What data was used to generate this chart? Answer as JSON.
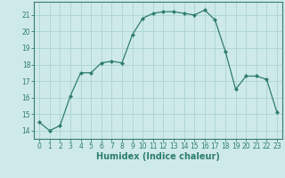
{
  "x": [
    0,
    1,
    2,
    3,
    4,
    5,
    6,
    7,
    8,
    9,
    10,
    11,
    12,
    13,
    14,
    15,
    16,
    17,
    18,
    19,
    20,
    21,
    22,
    23
  ],
  "y": [
    14.5,
    14.0,
    14.3,
    16.1,
    17.5,
    17.5,
    18.1,
    18.2,
    18.1,
    19.8,
    20.8,
    21.1,
    21.2,
    21.2,
    21.1,
    21.0,
    21.3,
    20.7,
    18.8,
    16.5,
    17.3,
    17.3,
    17.1,
    15.1
  ],
  "line_color": "#2e7d6e",
  "marker": "D",
  "marker_size": 2.0,
  "background_color": "#ceeae8",
  "grid_color": "#aad4d0",
  "xlabel": "Humidex (Indice chaleur)",
  "ylabel": "",
  "title": "",
  "xlim": [
    -0.5,
    23.5
  ],
  "ylim": [
    13.5,
    21.8
  ],
  "yticks": [
    14,
    15,
    16,
    17,
    18,
    19,
    20,
    21
  ],
  "xticks": [
    0,
    1,
    2,
    3,
    4,
    5,
    6,
    7,
    8,
    9,
    10,
    11,
    12,
    13,
    14,
    15,
    16,
    17,
    18,
    19,
    20,
    21,
    22,
    23
  ],
  "tick_fontsize": 5.5,
  "label_fontsize": 7.0,
  "spine_color": "#3a7a70",
  "tick_color": "#2e7d6e"
}
